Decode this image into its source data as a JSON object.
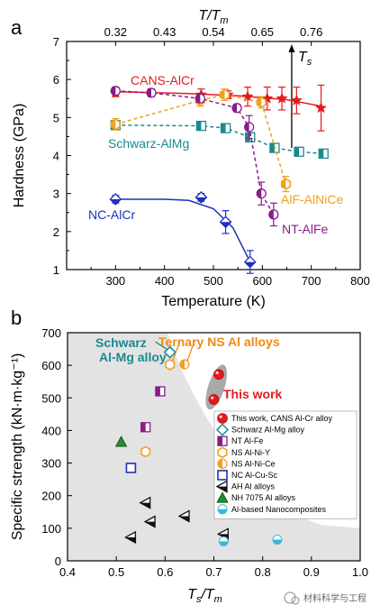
{
  "panel_a": {
    "letter": "a"
  },
  "panel_b": {
    "letter": "b"
  },
  "watermark": "材料科学与工程",
  "colors": {
    "cans": "#e41a1c",
    "schwarz": "#1a8a8f",
    "ncalcr": "#1f2fbf",
    "alf": "#f0a020",
    "ntalfe": "#8b1a8b",
    "ah": "#111111",
    "nh": "#1f8f2f",
    "nano": "#33bbdd",
    "region": "#e3e3e3"
  },
  "chart_data": [
    {
      "type": "line",
      "xlabel": "Temperature (K)",
      "ylabel": "Hardness (GPa)",
      "top_axis_label": "T/Tm",
      "top_ticks": [
        "0.32",
        "0.43",
        "0.54",
        "0.65",
        "0.76"
      ],
      "top_tick_positions": [
        300,
        400,
        500,
        600,
        700
      ],
      "xlim": [
        200,
        800
      ],
      "ylim": [
        1,
        7
      ],
      "xticks": [
        300,
        400,
        500,
        600,
        700,
        800
      ],
      "yticks": [
        1,
        2,
        3,
        4,
        5,
        6,
        7
      ],
      "arrow_label": "Ts",
      "arrow_x": 660,
      "series": [
        {
          "name": "CANS-AlCr",
          "color": "#e41a1c",
          "marker": "star",
          "x": [
            300,
            475,
            530,
            570,
            610,
            640,
            670,
            720
          ],
          "y": [
            5.65,
            5.6,
            5.6,
            5.55,
            5.5,
            5.5,
            5.45,
            5.25
          ],
          "err": [
            0.1,
            0.15,
            0.1,
            0.25,
            0.3,
            0.3,
            0.35,
            0.6
          ],
          "fit_x": [
            300,
            450,
            550,
            650,
            720
          ],
          "fit_y": [
            5.68,
            5.63,
            5.57,
            5.47,
            5.3
          ]
        },
        {
          "name": "Schwarz-AlMg",
          "color": "#1a8a8f",
          "marker": "square-half",
          "x": [
            300,
            475,
            525,
            575,
            625,
            675,
            725
          ],
          "y": [
            4.8,
            4.78,
            4.72,
            4.48,
            4.2,
            4.1,
            4.05
          ],
          "err": [
            0.05,
            0.05,
            0.05,
            0.1,
            0.05,
            0.05,
            0.1
          ],
          "fit_x": [
            300,
            475,
            525,
            575,
            625,
            675,
            725
          ],
          "fit_y": [
            4.8,
            4.78,
            4.72,
            4.48,
            4.2,
            4.1,
            4.05
          ]
        },
        {
          "name": "NC-AlCr",
          "color": "#1f2fbf",
          "marker": "diamond-half",
          "x": [
            300,
            475,
            525,
            575
          ],
          "y": [
            2.85,
            2.9,
            2.25,
            1.2
          ],
          "err": [
            0.1,
            0.1,
            0.3,
            0.3
          ],
          "fit_x": [
            300,
            400,
            450,
            500,
            540,
            575
          ],
          "fit_y": [
            2.85,
            2.85,
            2.82,
            2.6,
            2.1,
            1.2
          ]
        },
        {
          "name": "AlF-AlNiCe",
          "color": "#f0a020",
          "marker": "hexagon-half",
          "x": [
            300,
            473,
            523,
            598,
            648
          ],
          "y": [
            4.82,
            5.45,
            5.6,
            5.4,
            3.25
          ],
          "err": [
            0.15,
            0.15,
            0.15,
            0.15,
            0.2
          ],
          "fit_x": [
            300,
            473,
            523,
            598,
            648
          ],
          "fit_y": [
            4.82,
            5.45,
            5.6,
            5.4,
            3.25
          ]
        },
        {
          "name": "NT-AlFe",
          "color": "#8b1a8b",
          "marker": "circle-half",
          "x": [
            300,
            373,
            473,
            548,
            573,
            598,
            623
          ],
          "y": [
            5.7,
            5.65,
            5.5,
            5.25,
            4.75,
            3.0,
            2.45
          ],
          "err": [
            0.1,
            0.1,
            0.1,
            0.1,
            0.3,
            0.3,
            0.3
          ],
          "fit_x": [
            300,
            373,
            473,
            548,
            573,
            598,
            623
          ],
          "fit_y": [
            5.7,
            5.65,
            5.5,
            5.25,
            4.75,
            3.0,
            2.45
          ]
        }
      ]
    },
    {
      "type": "scatter",
      "xlabel": "Ts/Tm",
      "ylabel": "Specific strength (kN·m·kg⁻¹)",
      "xlim": [
        0.4,
        1.0
      ],
      "ylim": [
        0,
        700
      ],
      "xticks": [
        "0.4",
        "0.5",
        "0.6",
        "0.7",
        "0.8",
        "0.9",
        "1.0"
      ],
      "yticks": [
        "0",
        "100",
        "200",
        "300",
        "400",
        "500",
        "600",
        "700"
      ],
      "annotations": {
        "schwarz": "Schwarz Al-Mg alloy",
        "ternary": "Ternary NS Al alloys",
        "thiswork": "This work"
      },
      "series": [
        {
          "name": "This work, CANS Al-Cr alloy",
          "color": "#e41a1c",
          "marker": "ball",
          "x": [
            0.7,
            0.71
          ],
          "y": [
            495,
            572
          ]
        },
        {
          "name": "Schwarz Al-Mg alloy",
          "color": "#1a8a8f",
          "marker": "diamond-open",
          "x": [
            0.61
          ],
          "y": [
            640
          ]
        },
        {
          "name": "NT Al-Fe",
          "color": "#8b1a8b",
          "marker": "square-half",
          "x": [
            0.56,
            0.59
          ],
          "y": [
            410,
            520
          ]
        },
        {
          "name": "NS Al-Ni-Y",
          "color": "#f0a020",
          "marker": "hexagon-open",
          "x": [
            0.56,
            0.61
          ],
          "y": [
            335,
            602
          ]
        },
        {
          "name": "NS Al-Ni-Ce",
          "color": "#f0a020",
          "marker": "circle-half",
          "x": [
            0.64
          ],
          "y": [
            603
          ]
        },
        {
          "name": "NC Al-Cu-Sc",
          "color": "#1f2fbf",
          "marker": "square-open",
          "x": [
            0.53
          ],
          "y": [
            285
          ]
        },
        {
          "name": "AH Al alloys",
          "color": "#111111",
          "marker": "triangle-left",
          "x": [
            0.53,
            0.56,
            0.57,
            0.64,
            0.72
          ],
          "y": [
            72,
            178,
            120,
            137,
            82
          ]
        },
        {
          "name": "NH 7075 Al alloys",
          "color": "#1f8f2f",
          "marker": "triangle-up",
          "x": [
            0.51
          ],
          "y": [
            365
          ]
        },
        {
          "name": "Al-based Nanocomposites",
          "color": "#33bbdd",
          "marker": "ball-half",
          "x": [
            0.72,
            0.83
          ],
          "y": [
            60,
            65
          ]
        }
      ]
    }
  ]
}
